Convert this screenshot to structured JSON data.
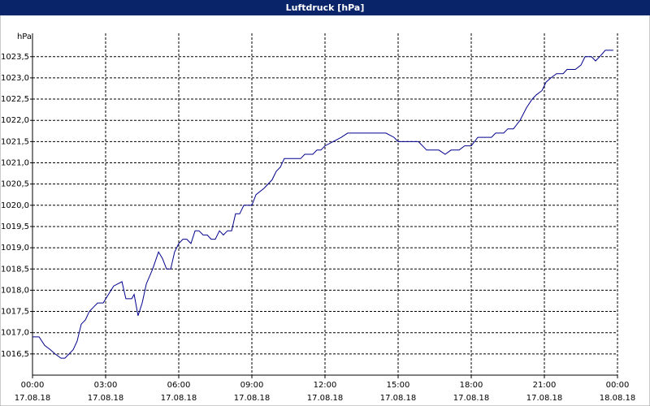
{
  "chart_data": {
    "type": "line",
    "title": "Luftdruck [hPa]",
    "y_unit": "hPa",
    "xlim": [
      0,
      24
    ],
    "xticks": [
      {
        "value": 0,
        "label": "00:00"
      },
      {
        "value": 3,
        "label": "03:00"
      },
      {
        "value": 6,
        "label": "06:00"
      },
      {
        "value": 9,
        "label": "09:00"
      },
      {
        "value": 12,
        "label": "12:00"
      },
      {
        "value": 15,
        "label": "15:00"
      },
      {
        "value": 18,
        "label": "18:00"
      },
      {
        "value": 21,
        "label": "21:00"
      },
      {
        "value": 24,
        "label": "00:00"
      }
    ],
    "xtick_dates": [
      "17.08.18",
      "17.08.18",
      "17.08.18",
      "17.08.18",
      "17.08.18",
      "17.08.18",
      "17.08.18",
      "17.08.18",
      "18.08.18"
    ],
    "ylim": [
      1016,
      1024.05
    ],
    "yticks": [
      {
        "value": 1016.5,
        "label": "1016,5"
      },
      {
        "value": 1017,
        "label": "1017,0"
      },
      {
        "value": 1017.5,
        "label": "1017,5"
      },
      {
        "value": 1018,
        "label": "1018,0"
      },
      {
        "value": 1018.5,
        "label": "1018,5"
      },
      {
        "value": 1019,
        "label": "1019,0"
      },
      {
        "value": 1019.5,
        "label": "1019,5"
      },
      {
        "value": 1020,
        "label": "1020,0"
      },
      {
        "value": 1020.5,
        "label": "1020,5"
      },
      {
        "value": 1021,
        "label": "1021,0"
      },
      {
        "value": 1021.5,
        "label": "1021,5"
      },
      {
        "value": 1022,
        "label": "1022,0"
      },
      {
        "value": 1022.5,
        "label": "1022,5"
      },
      {
        "value": 1023,
        "label": "1023,0"
      },
      {
        "value": 1023.5,
        "label": "1023,5"
      }
    ],
    "grid": true,
    "x": [
      0,
      0.27,
      0.5,
      0.73,
      0.93,
      1.17,
      1.33,
      1.5,
      1.67,
      1.83,
      2,
      2.17,
      2.33,
      2.5,
      2.67,
      2.9,
      3.17,
      3.33,
      3.5,
      3.67,
      3.83,
      4.07,
      4.17,
      4.33,
      4.5,
      4.67,
      4.93,
      5.17,
      5.33,
      5.5,
      5.67,
      5.83,
      6,
      6.17,
      6.33,
      6.5,
      6.67,
      6.83,
      7,
      7.17,
      7.33,
      7.5,
      7.67,
      7.83,
      8,
      8.17,
      8.33,
      8.5,
      8.67,
      9,
      9.17,
      9.5,
      9.83,
      10,
      10.17,
      10.33,
      11,
      11.17,
      11.5,
      11.67,
      11.83,
      12,
      12.33,
      12.67,
      12.93,
      14.5,
      14.83,
      15,
      15.83,
      16.17,
      16.67,
      16.93,
      17.17,
      17.5,
      17.73,
      18,
      18.27,
      18.83,
      19,
      19.33,
      19.5,
      19.73,
      20,
      20.27,
      20.5,
      20.67,
      20.9,
      21.07,
      21.27,
      21.5,
      21.77,
      21.93,
      22.27,
      22.5,
      22.67,
      22.93,
      23.1,
      23.27,
      23.5,
      23.83
    ],
    "series": [
      {
        "name": "Luftdruck",
        "color": "#00008c",
        "values": [
          1016.9,
          1016.9,
          1016.7,
          1016.6,
          1016.5,
          1016.4,
          1016.4,
          1016.5,
          1016.6,
          1016.8,
          1017.2,
          1017.3,
          1017.5,
          1017.6,
          1017.7,
          1017.7,
          1017.95,
          1018.1,
          1018.15,
          1018.2,
          1017.8,
          1017.8,
          1017.9,
          1017.4,
          1017.7,
          1018.15,
          1018.5,
          1018.9,
          1018.75,
          1018.5,
          1018.5,
          1018.9,
          1019.1,
          1019.2,
          1019.2,
          1019.1,
          1019.4,
          1019.4,
          1019.3,
          1019.3,
          1019.2,
          1019.2,
          1019.4,
          1019.3,
          1019.4,
          1019.4,
          1019.8,
          1019.8,
          1020,
          1020,
          1020.25,
          1020.4,
          1020.6,
          1020.8,
          1020.9,
          1021.1,
          1021.1,
          1021.2,
          1021.2,
          1021.3,
          1021.3,
          1021.4,
          1021.5,
          1021.6,
          1021.7,
          1021.7,
          1021.6,
          1021.5,
          1021.5,
          1021.3,
          1021.3,
          1021.2,
          1021.3,
          1021.3,
          1021.4,
          1021.4,
          1021.6,
          1021.6,
          1021.7,
          1021.7,
          1021.8,
          1021.8,
          1022,
          1022.3,
          1022.5,
          1022.6,
          1022.7,
          1022.9,
          1023,
          1023.1,
          1023.1,
          1023.2,
          1023.2,
          1023.3,
          1023.5,
          1023.5,
          1023.4,
          1023.5,
          1023.65,
          1023.65
        ]
      }
    ]
  }
}
